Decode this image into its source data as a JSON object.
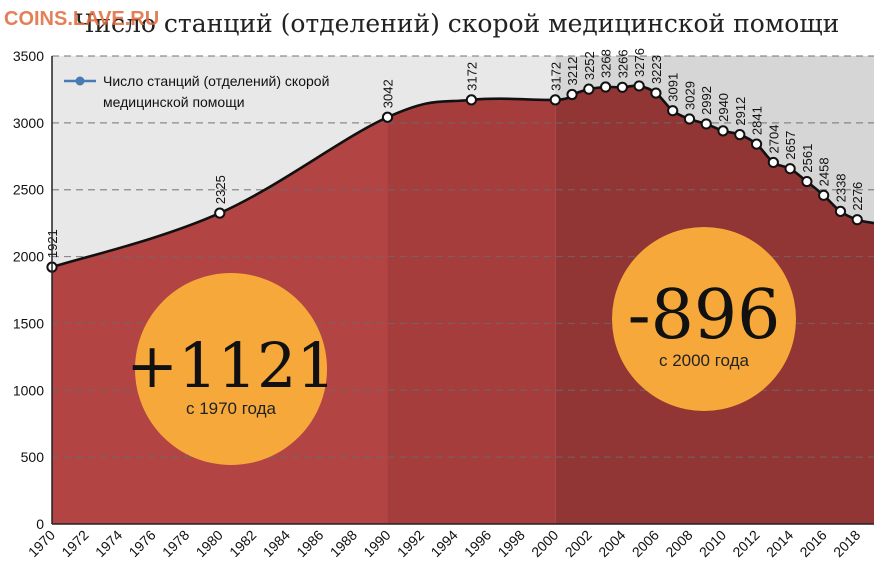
{
  "watermark": "COINS.LAVE.RU",
  "chart_data": {
    "type": "area",
    "title": "Число станций (отделений) скорой медицинской помощи",
    "xlabel": "",
    "ylabel": "",
    "ylim": [
      0,
      3500
    ],
    "yticks": [
      0,
      500,
      1000,
      1500,
      2000,
      2500,
      3000,
      3500
    ],
    "xlim": [
      1970,
      2019
    ],
    "xticks": [
      "1970",
      "1972",
      "1974",
      "1976",
      "1978",
      "1980",
      "1982",
      "1984",
      "1986",
      "1988",
      "1990",
      "1992",
      "1994",
      "1996",
      "1998",
      "2000",
      "2002",
      "2004",
      "2006",
      "2008",
      "2010",
      "2012",
      "2014",
      "2016",
      "2018"
    ],
    "grid": true,
    "legend_position": "top-left",
    "series": [
      {
        "name": "Число станций (отделений) скорой медицинской помощи",
        "color": "#4a7ab5",
        "points": [
          {
            "x": 1970,
            "y": 1921,
            "label": "1921"
          },
          {
            "x": 1980,
            "y": 2325,
            "label": "2325"
          },
          {
            "x": 1990,
            "y": 3042,
            "label": "3042"
          },
          {
            "x": 1995,
            "y": 3172,
            "label": "3172"
          },
          {
            "x": 2000,
            "y": 3172,
            "label": "3172"
          },
          {
            "x": 2001,
            "y": 3212,
            "label": "3212"
          },
          {
            "x": 2002,
            "y": 3252,
            "label": "3252"
          },
          {
            "x": 2003,
            "y": 3268,
            "label": "3268"
          },
          {
            "x": 2004,
            "y": 3266,
            "label": "3266"
          },
          {
            "x": 2005,
            "y": 3276,
            "label": "3276"
          },
          {
            "x": 2006,
            "y": 3223,
            "label": "3223"
          },
          {
            "x": 2007,
            "y": 3091,
            "label": "3091"
          },
          {
            "x": 2008,
            "y": 3029,
            "label": "3029"
          },
          {
            "x": 2009,
            "y": 2992,
            "label": "2992"
          },
          {
            "x": 2010,
            "y": 2940,
            "label": "2940"
          },
          {
            "x": 2011,
            "y": 2912,
            "label": "2912"
          },
          {
            "x": 2012,
            "y": 2841,
            "label": "2841"
          },
          {
            "x": 2013,
            "y": 2704,
            "label": "2704"
          },
          {
            "x": 2014,
            "y": 2657,
            "label": "2657"
          },
          {
            "x": 2015,
            "y": 2561,
            "label": "2561"
          },
          {
            "x": 2016,
            "y": 2458,
            "label": "2458"
          },
          {
            "x": 2017,
            "y": 2338,
            "label": "2338"
          },
          {
            "x": 2018,
            "y": 2276,
            "label": "2276"
          }
        ]
      }
    ],
    "annotations": [
      {
        "big": "+1121",
        "sub": "с 1970 года",
        "color": "#f6a93a"
      },
      {
        "big": "-896",
        "sub": "с 2000 года",
        "color": "#f6a93a"
      }
    ],
    "colors": {
      "fill_light": "#b24444",
      "fill_mid": "#a53d3d",
      "fill_dark": "#923535",
      "upper_bg": "#e8e8e8",
      "upper_bg_dark": "#d6d6d6",
      "line": "#111111"
    }
  }
}
